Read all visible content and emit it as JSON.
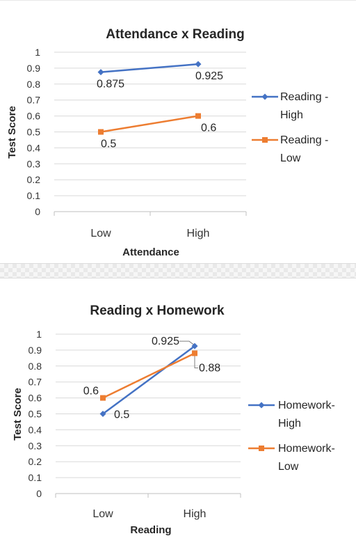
{
  "chart_data": [
    {
      "type": "line",
      "title": "Attendance x Reading",
      "xlabel": "Attendance",
      "ylabel": "Test Score",
      "categories": [
        "Low",
        "High"
      ],
      "ylim": [
        0,
        1
      ],
      "yticks": [
        "0",
        "0.1",
        "0.2",
        "0.3",
        "0.4",
        "0.5",
        "0.6",
        "0.7",
        "0.8",
        "0.9",
        "1"
      ],
      "grid": true,
      "legend_position": "right",
      "series": [
        {
          "name": "Reading - High",
          "legend_lines": [
            "Reading -",
            "High"
          ],
          "values": [
            0.875,
            0.925
          ],
          "labels": [
            "0.875",
            "0.925"
          ],
          "color": "#4472C4",
          "marker": "diamond"
        },
        {
          "name": "Reading - Low",
          "legend_lines": [
            "Reading -",
            "Low"
          ],
          "values": [
            0.5,
            0.6
          ],
          "labels": [
            "0.5",
            "0.6"
          ],
          "color": "#ED7D31",
          "marker": "square"
        }
      ]
    },
    {
      "type": "line",
      "title": "Reading x Homework",
      "xlabel": "Reading",
      "ylabel": "Test Score",
      "categories": [
        "Low",
        "High"
      ],
      "ylim": [
        0,
        1
      ],
      "yticks": [
        "0",
        "0.1",
        "0.2",
        "0.3",
        "0.4",
        "0.5",
        "0.6",
        "0.7",
        "0.8",
        "0.9",
        "1"
      ],
      "grid": true,
      "legend_position": "right",
      "series": [
        {
          "name": "Homework-High",
          "legend_lines": [
            "Homework-",
            "High"
          ],
          "values": [
            0.5,
            0.925
          ],
          "labels": [
            "0.5",
            "0.925"
          ],
          "color": "#4472C4",
          "marker": "diamond"
        },
        {
          "name": "Homework-Low",
          "legend_lines": [
            "Homework-",
            "Low"
          ],
          "values": [
            0.6,
            0.88
          ],
          "labels": [
            "0.6",
            "0.88"
          ],
          "color": "#ED7D31",
          "marker": "square"
        }
      ]
    }
  ]
}
